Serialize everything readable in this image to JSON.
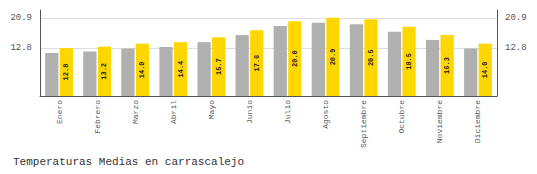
{
  "chart_data": {
    "type": "bar",
    "title": "Temperaturas Medias en carrascalejo",
    "categories": [
      "Enero",
      "Febrero",
      "Marzo",
      "Abril",
      "Mayo",
      "Junio",
      "Julio",
      "Agosto",
      "Septiembre",
      "Octubre",
      "Noviembre",
      "Diciembre"
    ],
    "series": [
      {
        "color": "#B0B0B0",
        "values": [
          11.5,
          11.9,
          12.7,
          13.1,
          14.4,
          16.3,
          18.7,
          19.6,
          19.2,
          17.2,
          15.0,
          12.7
        ]
      },
      {
        "color": "#FFD700",
        "values": [
          12.8,
          13.2,
          14.0,
          14.4,
          15.7,
          17.6,
          20.0,
          20.9,
          20.5,
          18.5,
          16.3,
          14.0
        ],
        "data_labels": true,
        "value_labels": [
          "12.8",
          "13.2",
          "14.0",
          "14.4",
          "15.7",
          "17.6",
          "20.0",
          "20.9",
          "20.5",
          "18.5",
          "16.3",
          "14.0"
        ]
      }
    ],
    "ylim": [
      0,
      23.0
    ],
    "yticks": [
      12.8,
      20.9
    ],
    "y2lim": [
      0,
      23.0
    ],
    "y2ticks": [
      12.8,
      20.9
    ],
    "grid": true
  }
}
